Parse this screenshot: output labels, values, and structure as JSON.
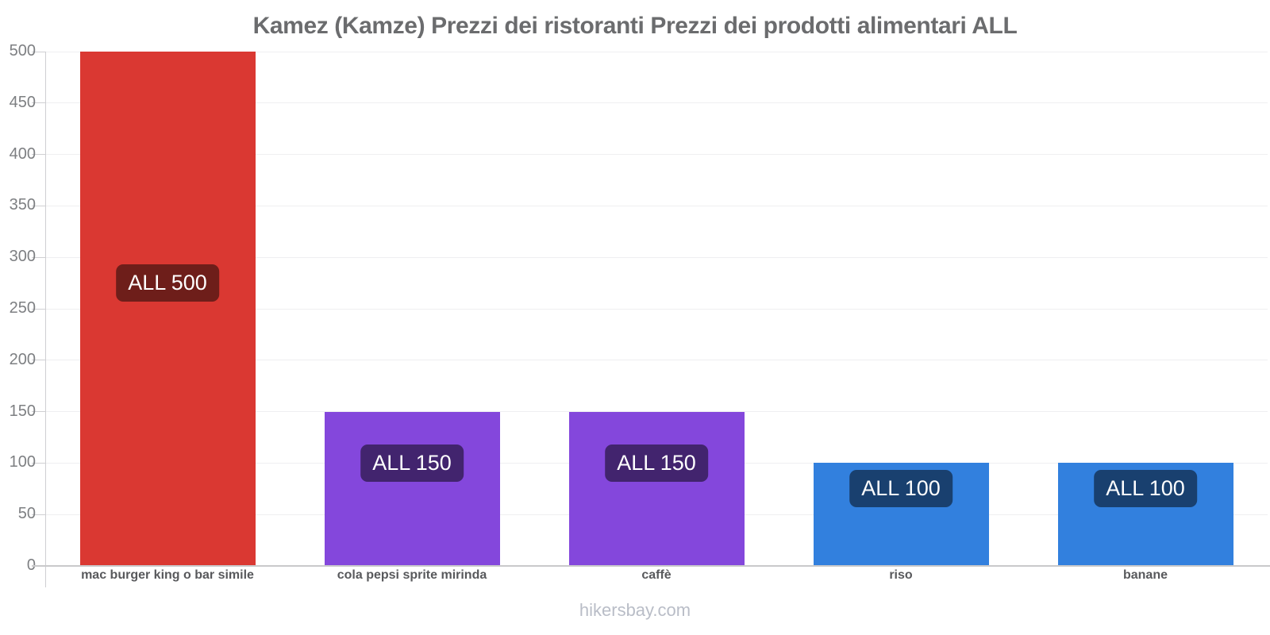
{
  "page": {
    "footer": "hikersbay.com"
  },
  "colors": {
    "background": "#ffffff",
    "title_text": "#6b6c6e",
    "tick_label": "#7d7f82",
    "x_label": "#58595c",
    "gridline": "#efeff1",
    "axis_line": "#cfcfd2",
    "zero_line": "#c9c9cb",
    "badge_text": "#ffffff",
    "footer_text": "#b9bdc7"
  },
  "chart_data": {
    "type": "bar",
    "title": "Kamez (Kamze) Prezzi dei ristoranti Prezzi dei prodotti alimentari ALL",
    "currency": "ALL",
    "categories": [
      "mac burger king o bar simile",
      "cola pepsi sprite mirinda",
      "caffè",
      "riso",
      "banane"
    ],
    "values": [
      500,
      150,
      150,
      100,
      100
    ],
    "bar_labels": [
      "ALL 500",
      "ALL 150",
      "ALL 150",
      "ALL 100",
      "ALL 100"
    ],
    "bar_colors": [
      "#da3832",
      "#8447dc",
      "#8447dc",
      "#3280de",
      "#3280de"
    ],
    "label_bg_colors": [
      "#6e1e1a",
      "#42246e",
      "#42246e",
      "#19406f",
      "#19406f"
    ],
    "xlabel": "",
    "ylabel": "",
    "ylim": [
      0,
      500
    ],
    "ytick_step": 50,
    "yticks": [
      0,
      50,
      100,
      150,
      200,
      250,
      300,
      350,
      400,
      450,
      500
    ],
    "grid": true,
    "legend": "none",
    "watermark": "hikersbay.com"
  }
}
